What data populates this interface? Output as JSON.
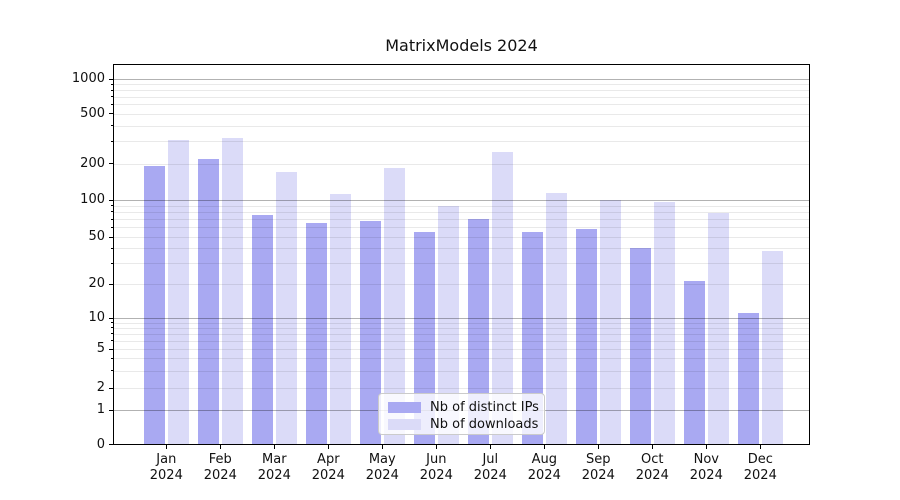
{
  "title": "MatrixModels 2024",
  "chart_data": {
    "type": "bar",
    "title": "MatrixModels 2024",
    "categories": [
      "Jan 2024",
      "Feb 2024",
      "Mar 2024",
      "Apr 2024",
      "May 2024",
      "Jun 2024",
      "Jul 2024",
      "Aug 2024",
      "Sep 2024",
      "Oct 2024",
      "Nov 2024",
      "Dec 2024"
    ],
    "series": [
      {
        "name": "Nb of distinct IPs",
        "color": "#a9a9f2",
        "values": [
          192,
          219,
          76,
          65,
          68,
          55,
          70,
          55,
          58,
          40,
          21,
          11
        ]
      },
      {
        "name": "Nb of downloads",
        "color": "#dbdbf8",
        "values": [
          310,
          320,
          170,
          113,
          182,
          90,
          245,
          115,
          100,
          97,
          79,
          38
        ]
      }
    ],
    "yscale": "symlog",
    "ylim": [
      0,
      1300
    ],
    "y_tick_values": [
      0,
      1,
      2,
      5,
      10,
      20,
      50,
      100,
      200,
      500,
      1000
    ],
    "y_tick_labels": [
      "0",
      "1",
      "2",
      "5",
      "10",
      "20",
      "50",
      "100",
      "200",
      "500",
      "1000"
    ],
    "y_major_grid": [
      1,
      10,
      100,
      1000
    ],
    "grid": true,
    "legend_position": "lower center",
    "xlabel": "",
    "ylabel": ""
  },
  "colors": {
    "bar_distinct_ips": "#a9a9f2",
    "bar_downloads": "#dbdbf8",
    "major_grid": "#b3b3b3",
    "minor_grid": "#e9e9e9",
    "legend_border": "#cbcbcb"
  }
}
